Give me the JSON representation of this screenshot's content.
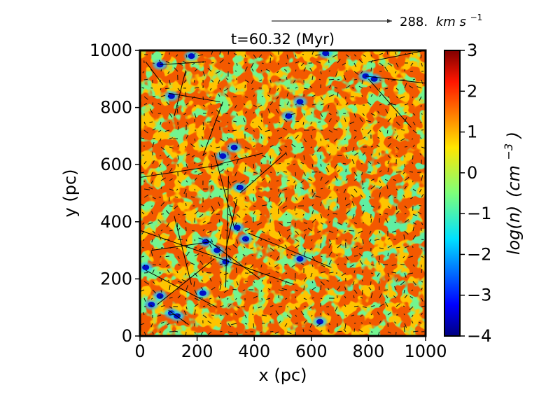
{
  "chart_data": {
    "type": "heatmap",
    "title": "t=60.32 (Myr)",
    "xlabel": "x (pc)",
    "ylabel": "y (pc)",
    "xlim": [
      0,
      1000
    ],
    "ylim": [
      0,
      1000
    ],
    "xticks": [
      0,
      200,
      400,
      600,
      800,
      1000
    ],
    "yticks": [
      0,
      200,
      400,
      600,
      800,
      1000
    ],
    "xtick_labels": [
      "0",
      "200",
      "400",
      "600",
      "800",
      "1000"
    ],
    "ytick_labels": [
      "0",
      "200",
      "400",
      "600",
      "800",
      "1000"
    ],
    "colormap": "jet",
    "colorbar": {
      "label_base": "log(n)",
      "label_unit_base": "(cm",
      "label_unit_exp": "−3",
      "label_close": ")",
      "range": [
        -4,
        3
      ],
      "ticks": [
        -4,
        -3,
        -2,
        -1,
        0,
        1,
        2,
        3
      ],
      "tick_labels": [
        "−4",
        "−3",
        "−2",
        "−1",
        "0",
        "1",
        "2",
        "3"
      ]
    },
    "reference_vector": {
      "value_label": "288.",
      "unit_base": "km s",
      "unit_exp": "−1"
    },
    "dense_clumps": [
      {
        "x": 70,
        "y": 950
      },
      {
        "x": 110,
        "y": 840
      },
      {
        "x": 180,
        "y": 980
      },
      {
        "x": 290,
        "y": 630
      },
      {
        "x": 330,
        "y": 660
      },
      {
        "x": 560,
        "y": 820
      },
      {
        "x": 520,
        "y": 770
      },
      {
        "x": 790,
        "y": 910
      },
      {
        "x": 820,
        "y": 900
      },
      {
        "x": 350,
        "y": 520
      },
      {
        "x": 340,
        "y": 380
      },
      {
        "x": 370,
        "y": 340
      },
      {
        "x": 270,
        "y": 300
      },
      {
        "x": 300,
        "y": 260
      },
      {
        "x": 230,
        "y": 330
      },
      {
        "x": 20,
        "y": 240
      },
      {
        "x": 40,
        "y": 110
      },
      {
        "x": 70,
        "y": 140
      },
      {
        "x": 110,
        "y": 80
      },
      {
        "x": 130,
        "y": 70
      },
      {
        "x": 560,
        "y": 270
      },
      {
        "x": 630,
        "y": 50
      },
      {
        "x": 220,
        "y": 150
      },
      {
        "x": 650,
        "y": 990
      }
    ],
    "long_vectors": [
      {
        "x0": 0,
        "y0": 555,
        "x1": 290,
        "y1": 600
      },
      {
        "x0": 0,
        "y0": 370,
        "x1": 540,
        "y1": 180
      },
      {
        "x0": 1000,
        "y0": 885,
        "x1": 790,
        "y1": 910
      },
      {
        "x0": 800,
        "y0": 960,
        "x1": 1000,
        "y1": 1000
      },
      {
        "x0": 800,
        "y0": 900,
        "x1": 950,
        "y1": 730
      },
      {
        "x0": 380,
        "y0": 360,
        "x1": 670,
        "y1": 240
      },
      {
        "x0": 300,
        "y0": 300,
        "x1": 340,
        "y1": 480
      },
      {
        "x0": 310,
        "y0": 560,
        "x1": 300,
        "y1": 170
      },
      {
        "x0": 220,
        "y0": 630,
        "x1": 290,
        "y1": 820
      },
      {
        "x0": 120,
        "y0": 770,
        "x1": 160,
        "y1": 930
      },
      {
        "x0": 100,
        "y0": 850,
        "x1": 280,
        "y1": 820
      },
      {
        "x0": 70,
        "y0": 950,
        "x1": 230,
        "y1": 960
      },
      {
        "x0": 350,
        "y0": 500,
        "x1": 510,
        "y1": 640
      },
      {
        "x0": 20,
        "y0": 230,
        "x1": 270,
        "y1": 100
      },
      {
        "x0": 60,
        "y0": 110,
        "x1": 260,
        "y1": 270
      },
      {
        "x0": 180,
        "y0": 180,
        "x1": 120,
        "y1": 420
      },
      {
        "x0": 230,
        "y0": 340,
        "x1": 420,
        "y1": 200
      },
      {
        "x0": 40,
        "y0": 300,
        "x1": 250,
        "y1": 330
      },
      {
        "x0": 270,
        "y0": 600,
        "x1": 430,
        "y1": 640
      },
      {
        "x0": 330,
        "y0": 380,
        "x1": 260,
        "y1": 640
      },
      {
        "x0": 100,
        "y0": 90,
        "x1": 170,
        "y1": 40
      },
      {
        "x0": 20,
        "y0": 960,
        "x1": 80,
        "y1": 880
      }
    ]
  }
}
